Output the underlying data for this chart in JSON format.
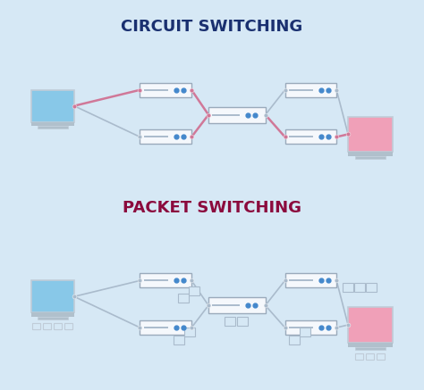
{
  "bg_color": "#d6e8f5",
  "title1": "CIRCUIT SWITCHING",
  "title2": "PACKET SWITCHING",
  "title1_color": "#1a3070",
  "title2_color": "#8b0a3d",
  "router_fill": "#f5f8fc",
  "router_border": "#9aaabb",
  "router_line_color": "#aabbcc",
  "circuit_line_color": "#d07898",
  "normal_line_color": "#aabbcc",
  "dot_color": "#9aaabb",
  "blue_dot_color": "#4488cc",
  "monitor_blue_fill": "#88c8e8",
  "monitor_blue_dark": "#5599bb",
  "monitor_pink_fill": "#f0a0b8",
  "monitor_frame": "#c0ccd8",
  "monitor_stand": "#b0c0cc",
  "packet_border": "#aabbcc"
}
